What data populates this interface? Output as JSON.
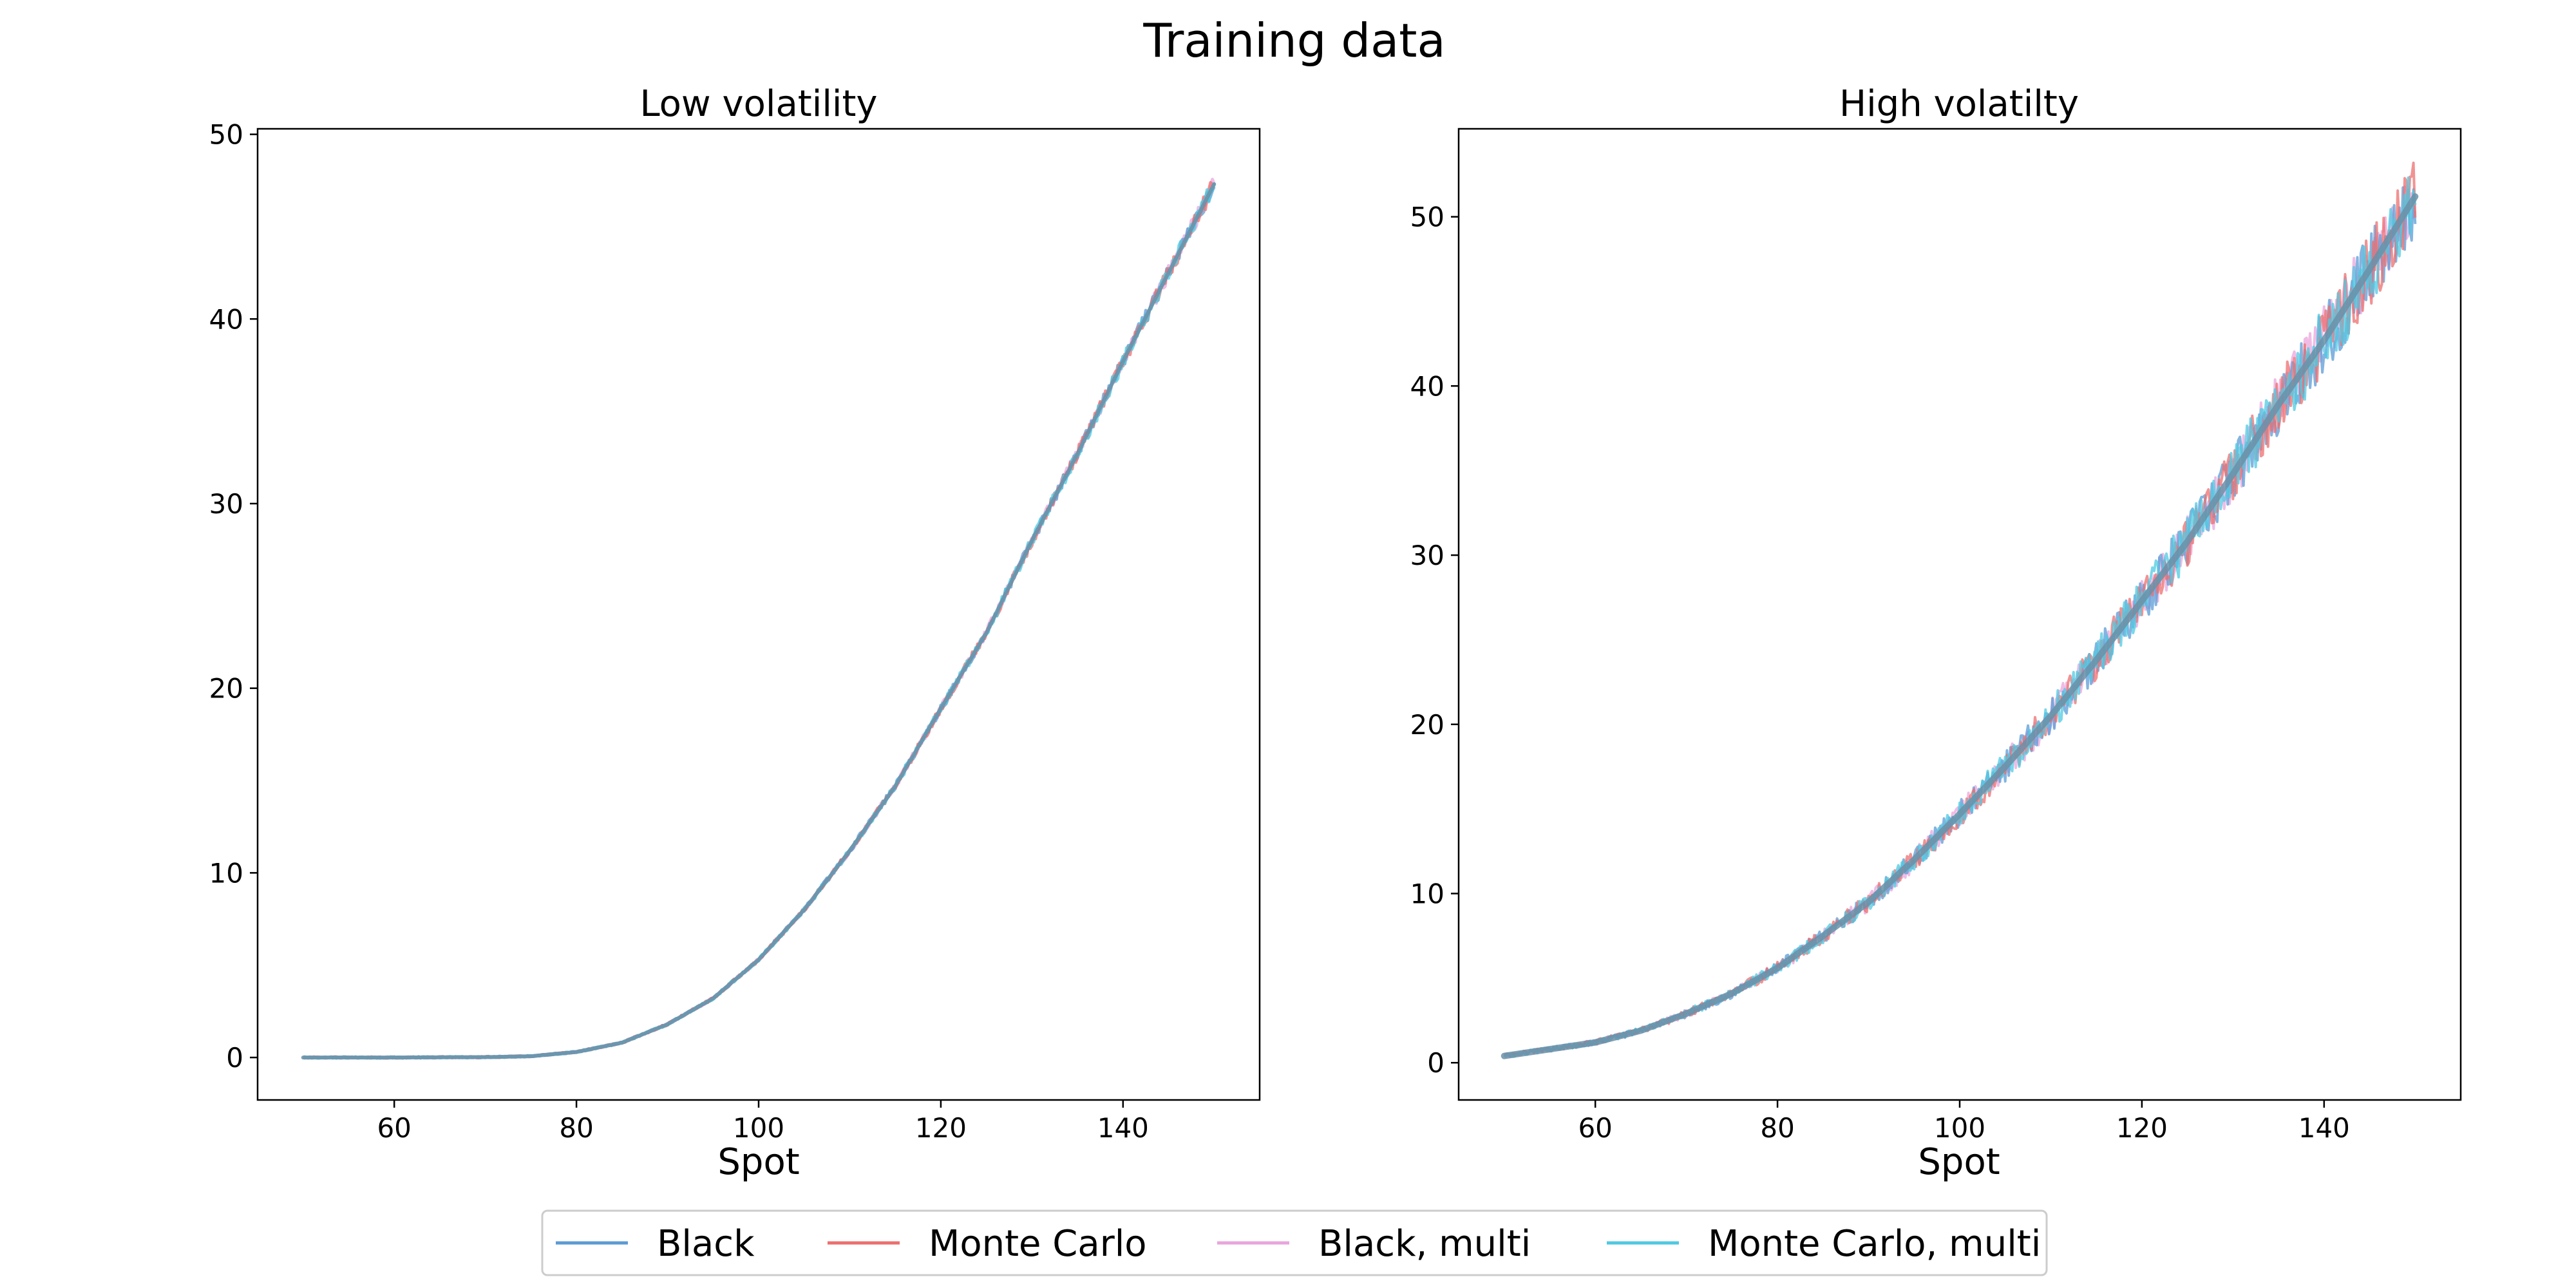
{
  "figure": {
    "title": "Training data"
  },
  "colors": {
    "black": "#5b9bd5",
    "monte_carlo": "#ec6f6f",
    "black_multi": "#e9a5dc",
    "monte_carlo_multi": "#4fc9e1",
    "center_line": "#6a90a8"
  },
  "legend": {
    "placement": "bottom-center",
    "entries": [
      {
        "label": "Black",
        "color": "#5b9bd5"
      },
      {
        "label": "Monte Carlo",
        "color": "#ec6f6f"
      },
      {
        "label": "Black, multi",
        "color": "#e9a5dc"
      },
      {
        "label": "Monte Carlo, multi",
        "color": "#4fc9e1"
      }
    ]
  },
  "chart_data": [
    {
      "type": "line",
      "title": "Low volatility",
      "xlabel": "Spot",
      "ylabel": "",
      "xlim": [
        45,
        155
      ],
      "ylim": [
        -2.3,
        50.3
      ],
      "xticks": [
        60,
        80,
        100,
        120,
        140
      ],
      "yticks": [
        0,
        10,
        20,
        30,
        40,
        50
      ],
      "grid": false,
      "x": [
        50,
        60,
        70,
        75,
        80,
        85,
        90,
        95,
        100,
        105,
        110,
        115,
        120,
        125,
        130,
        135,
        140,
        145,
        150
      ],
      "series": [
        {
          "name": "Black",
          "values": [
            0.0,
            0.0,
            0.02,
            0.07,
            0.3,
            0.8,
            1.8,
            3.2,
            5.3,
            8.0,
            11.2,
            14.7,
            18.9,
            23.0,
            28.0,
            32.7,
            37.7,
            42.5,
            47.3
          ]
        },
        {
          "name": "Monte Carlo",
          "values": [
            0.0,
            0.0,
            0.02,
            0.07,
            0.3,
            0.8,
            1.8,
            3.2,
            5.3,
            8.0,
            11.2,
            14.7,
            18.9,
            23.0,
            28.0,
            32.7,
            37.7,
            42.5,
            47.3
          ]
        },
        {
          "name": "Black, multi",
          "values": [
            0.0,
            0.0,
            0.02,
            0.07,
            0.3,
            0.8,
            1.8,
            3.2,
            5.3,
            8.0,
            11.2,
            14.7,
            18.9,
            23.0,
            28.0,
            32.7,
            37.7,
            42.5,
            47.3
          ]
        },
        {
          "name": "Monte Carlo, multi",
          "values": [
            0.0,
            0.0,
            0.02,
            0.07,
            0.3,
            0.8,
            1.8,
            3.2,
            5.3,
            8.0,
            11.2,
            14.7,
            18.9,
            23.0,
            28.0,
            32.7,
            37.7,
            42.5,
            47.3
          ]
        }
      ]
    },
    {
      "type": "line",
      "title": "High volatilty",
      "xlabel": "Spot",
      "ylabel": "",
      "xlim": [
        45,
        155
      ],
      "ylim": [
        -2.2,
        55.2
      ],
      "xticks": [
        60,
        80,
        100,
        120,
        140
      ],
      "yticks": [
        0,
        10,
        20,
        30,
        40,
        50
      ],
      "grid": false,
      "x": [
        50,
        55,
        60,
        65,
        70,
        75,
        80,
        85,
        90,
        95,
        100,
        105,
        110,
        115,
        120,
        125,
        130,
        135,
        140,
        145,
        150
      ],
      "series": [
        {
          "name": "Black",
          "values": [
            0.4,
            0.8,
            1.2,
            1.9,
            2.9,
            4.1,
            5.6,
            7.5,
            9.5,
            12.0,
            14.7,
            17.5,
            20.5,
            23.8,
            27.3,
            30.8,
            34.8,
            38.9,
            42.7,
            46.9,
            51.2
          ]
        },
        {
          "name": "Monte Carlo",
          "values": [
            0.4,
            0.8,
            1.2,
            1.9,
            2.9,
            4.1,
            5.6,
            7.5,
            9.5,
            12.0,
            14.7,
            17.5,
            20.5,
            23.8,
            27.3,
            30.8,
            34.8,
            38.9,
            42.7,
            46.9,
            51.2
          ]
        },
        {
          "name": "Black, multi",
          "values": [
            0.4,
            0.8,
            1.2,
            1.9,
            2.9,
            4.1,
            5.6,
            7.5,
            9.5,
            12.0,
            14.7,
            17.5,
            20.5,
            23.8,
            27.3,
            30.8,
            34.8,
            38.9,
            42.7,
            46.9,
            51.2
          ]
        },
        {
          "name": "Monte Carlo, multi",
          "values": [
            0.4,
            0.8,
            1.2,
            1.9,
            2.9,
            4.1,
            5.6,
            7.5,
            9.5,
            12.0,
            14.7,
            17.5,
            20.5,
            23.8,
            27.3,
            30.8,
            34.8,
            38.9,
            42.7,
            46.9,
            51.2
          ]
        }
      ]
    }
  ]
}
